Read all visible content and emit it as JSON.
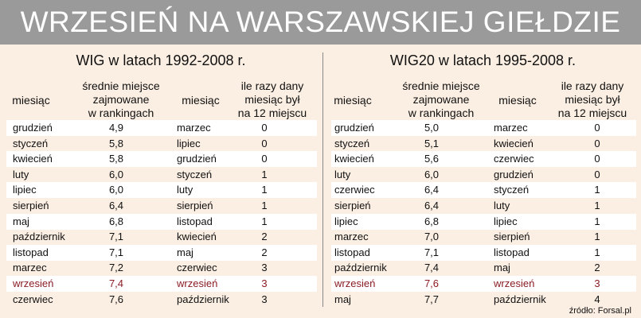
{
  "title": "WRZESIEŃ NA WARSZAWSKIEJ GIEŁDZIE",
  "source": "źródło: Forsal.pl",
  "highlight_color": "#8a1c24",
  "left": {
    "subtitle": "WIG w latach 1992-2008 r.",
    "headers": {
      "month_a": "miesiąc",
      "avg": [
        "średnie miejsce",
        "zajmowane",
        "w rankingach"
      ],
      "month_b": "miesiąc",
      "count": [
        "ile razy dany",
        "miesiąc był",
        "na 12 miejscu"
      ]
    },
    "rows": [
      {
        "a": "grudzień",
        "avg": "4,9",
        "b": "marzec",
        "count": "0"
      },
      {
        "a": "styczeń",
        "avg": "5,8",
        "b": "lipiec",
        "count": "0"
      },
      {
        "a": "kwiecień",
        "avg": "5,8",
        "b": "grudzień",
        "count": "0"
      },
      {
        "a": "luty",
        "avg": "6,0",
        "b": "styczeń",
        "count": "1"
      },
      {
        "a": "lipiec",
        "avg": "6,0",
        "b": "luty",
        "count": "1"
      },
      {
        "a": "sierpień",
        "avg": "6,4",
        "b": "sierpień",
        "count": "1"
      },
      {
        "a": "maj",
        "avg": "6,8",
        "b": "listopad",
        "count": "1"
      },
      {
        "a": "październik",
        "avg": "7,1",
        "b": "kwiecień",
        "count": "2"
      },
      {
        "a": "listopad",
        "avg": "7,1",
        "b": "maj",
        "count": "2"
      },
      {
        "a": "marzec",
        "avg": "7,2",
        "b": "czerwiec",
        "count": "3"
      },
      {
        "a": "wrzesień",
        "avg": "7,4",
        "b": "wrzesień",
        "count": "3",
        "highlight_a": true,
        "highlight_b": true
      },
      {
        "a": "czerwiec",
        "avg": "7,6",
        "b": "październik",
        "count": "3"
      }
    ]
  },
  "right": {
    "subtitle": "WIG20 w latach 1995-2008 r.",
    "headers": {
      "month_a": "miesiąc",
      "avg": [
        "średnie miejsce",
        "zajmowane",
        "w rankingach"
      ],
      "month_b": "miesiąc",
      "count": [
        "ile razy dany",
        "miesiąc był",
        "na 12 miejscu"
      ]
    },
    "rows": [
      {
        "a": "grudzień",
        "avg": "5,0",
        "b": "marzec",
        "count": "0"
      },
      {
        "a": "styczeń",
        "avg": "5,1",
        "b": "kwiecień",
        "count": "0"
      },
      {
        "a": "kwiecień",
        "avg": "5,6",
        "b": "czerwiec",
        "count": "0"
      },
      {
        "a": "luty",
        "avg": "6,0",
        "b": "grudzień",
        "count": "0"
      },
      {
        "a": "czerwiec",
        "avg": "6,4",
        "b": "styczeń",
        "count": "1"
      },
      {
        "a": "sierpień",
        "avg": "6,4",
        "b": "luty",
        "count": "1"
      },
      {
        "a": "lipiec",
        "avg": "6,8",
        "b": "lipiec",
        "count": "1"
      },
      {
        "a": "marzec",
        "avg": "7,0",
        "b": "sierpień",
        "count": "1"
      },
      {
        "a": "listopad",
        "avg": "7,1",
        "b": "listopad",
        "count": "1"
      },
      {
        "a": "październik",
        "avg": "7,4",
        "b": "maj",
        "count": "2"
      },
      {
        "a": "wrzesień",
        "avg": "7,6",
        "b": "wrzesień",
        "count": "3",
        "highlight_a": true,
        "highlight_b": true
      },
      {
        "a": "maj",
        "avg": "7,7",
        "b": "październik",
        "count": "4"
      }
    ]
  }
}
